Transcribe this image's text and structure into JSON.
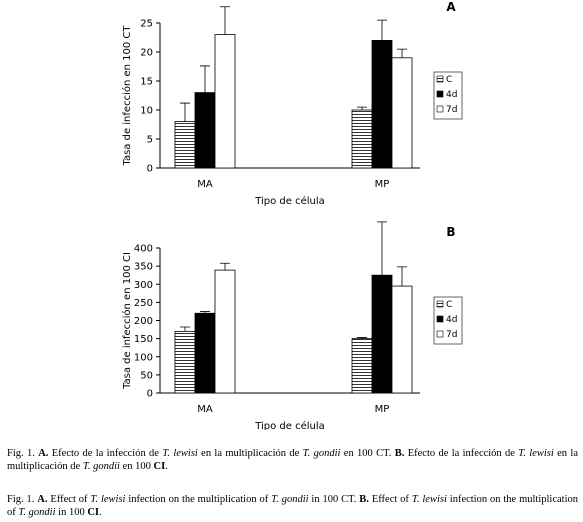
{
  "chart_data": [
    {
      "type": "bar",
      "label": "A",
      "y_label": "Tasa de infección en 100 CT",
      "x_label": "Tipo de célula",
      "categories": [
        "MA",
        "MP"
      ],
      "series": [
        {
          "name": "C",
          "color": "#ffffff",
          "hatch": true,
          "values": [
            8,
            10
          ],
          "errors": [
            3.2,
            0.5
          ]
        },
        {
          "name": "4d",
          "color": "#000000",
          "values": [
            13,
            22
          ],
          "errors": [
            4.6,
            3.5
          ]
        },
        {
          "name": "7d",
          "color": "#ffffff",
          "values": [
            23,
            19
          ],
          "errors": [
            4.8,
            1.5
          ]
        }
      ],
      "ylim": [
        0,
        25
      ],
      "yticks": [
        0,
        5,
        10,
        15,
        20,
        25
      ]
    },
    {
      "type": "bar",
      "label": "B",
      "y_label": "Tasa de infección en 100 CI",
      "x_label": "Tipo de célula",
      "categories": [
        "MA",
        "MP"
      ],
      "series": [
        {
          "name": "C",
          "color": "#ffffff",
          "hatch": true,
          "values": [
            170,
            150
          ],
          "errors": [
            12,
            3
          ]
        },
        {
          "name": "4d",
          "color": "#000000",
          "values": [
            220,
            325
          ],
          "errors": [
            5,
            147
          ]
        },
        {
          "name": "7d",
          "color": "#ffffff",
          "values": [
            339,
            295
          ],
          "errors": [
            19,
            53
          ]
        }
      ],
      "ylim": [
        0,
        400
      ],
      "yticks": [
        0,
        50,
        100,
        150,
        200,
        250,
        300,
        350,
        400
      ]
    }
  ],
  "caption_es": [
    "Fig. 1. ",
    "A.",
    " Efecto de la infección de ",
    "T. lewisi",
    " en la multiplicación de ",
    "T. gondii",
    " en 100 CT. ",
    "B.",
    " Efecto de la infección de ",
    "T. lewisi",
    " en la multiplicación de ",
    "T. gondii",
    " en 100 ",
    "CI",
    "."
  ],
  "caption_en": [
    "Fig. 1. ",
    "A.",
    " Effect of ",
    "T. lewisi",
    " infection on the multiplication of ",
    "T. gondii",
    " in 100 CT. ",
    "B.",
    " Effect of ",
    "T. lewisi",
    " infection on the multiplication of ",
    "T. gondii",
    " in 100 ",
    "CI",
    "."
  ]
}
